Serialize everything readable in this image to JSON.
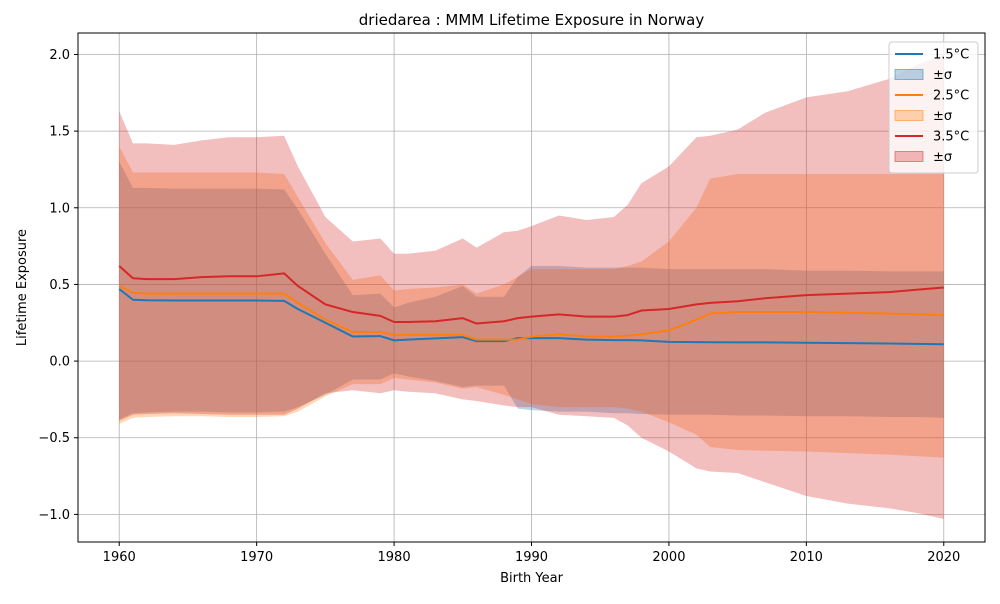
{
  "chart_data": {
    "type": "area",
    "title": "driedarea : MMM Lifetime Exposure in Norway",
    "xlabel": "Birth Year",
    "ylabel": "Lifetime Exposure",
    "xlim": [
      1957.0,
      2023.0
    ],
    "ylim": [
      -1.18,
      2.14
    ],
    "xticks": [
      1960,
      1970,
      1980,
      1990,
      2000,
      2010,
      2020
    ],
    "yticks": [
      -1.0,
      -0.5,
      0.0,
      0.5,
      1.0,
      1.5,
      2.0
    ],
    "xtick_labels": [
      "1960",
      "1970",
      "1980",
      "1990",
      "2000",
      "2010",
      "2020"
    ],
    "ytick_labels": [
      "−1.0",
      "−0.5",
      "0.0",
      "0.5",
      "1.0",
      "1.5",
      "2.0"
    ],
    "grid": true,
    "legend_position": "top-right",
    "x": [
      1960,
      1961,
      1962,
      1964,
      1966,
      1968,
      1970,
      1972,
      1973,
      1975,
      1977,
      1979,
      1980,
      1981,
      1983,
      1985,
      1986,
      1988,
      1989,
      1990,
      1992,
      1994,
      1996,
      1997,
      1998,
      2000,
      2002,
      2003,
      2005,
      2007,
      2010,
      2013,
      2016,
      2018,
      2020
    ],
    "series": [
      {
        "name": "1.5°C",
        "band_label": "±σ",
        "color": "#1f77b4",
        "band_color": "#1f77b4",
        "mean": [
          0.47,
          0.4,
          0.397,
          0.395,
          0.395,
          0.395,
          0.395,
          0.393,
          0.34,
          0.25,
          0.16,
          0.163,
          0.135,
          0.14,
          0.148,
          0.156,
          0.13,
          0.13,
          0.15,
          0.15,
          0.15,
          0.14,
          0.137,
          0.137,
          0.135,
          0.125,
          0.124,
          0.123,
          0.122,
          0.122,
          0.12,
          0.117,
          0.115,
          0.112,
          0.11
        ],
        "upper": [
          1.3,
          1.13,
          1.13,
          1.125,
          1.125,
          1.125,
          1.125,
          1.12,
          0.99,
          0.7,
          0.43,
          0.44,
          0.35,
          0.38,
          0.42,
          0.49,
          0.42,
          0.42,
          0.55,
          0.62,
          0.62,
          0.61,
          0.61,
          0.61,
          0.61,
          0.6,
          0.6,
          0.6,
          0.6,
          0.6,
          0.59,
          0.59,
          0.585,
          0.585,
          0.585
        ],
        "lower": [
          -0.38,
          -0.34,
          -0.335,
          -0.33,
          -0.33,
          -0.335,
          -0.335,
          -0.33,
          -0.3,
          -0.22,
          -0.12,
          -0.12,
          -0.08,
          -0.1,
          -0.13,
          -0.17,
          -0.16,
          -0.16,
          -0.31,
          -0.32,
          -0.33,
          -0.33,
          -0.34,
          -0.34,
          -0.345,
          -0.35,
          -0.35,
          -0.35,
          -0.355,
          -0.355,
          -0.36,
          -0.36,
          -0.365,
          -0.365,
          -0.37
        ]
      },
      {
        "name": "2.5°C",
        "band_label": "±σ",
        "color": "#ff7f0e",
        "band_color": "#ff7f0e",
        "mean": [
          0.49,
          0.445,
          0.44,
          0.44,
          0.44,
          0.44,
          0.44,
          0.44,
          0.38,
          0.27,
          0.19,
          0.19,
          0.17,
          0.17,
          0.17,
          0.17,
          0.14,
          0.14,
          0.14,
          0.16,
          0.175,
          0.16,
          0.16,
          0.165,
          0.175,
          0.2,
          0.27,
          0.31,
          0.32,
          0.32,
          0.32,
          0.315,
          0.31,
          0.305,
          0.3
        ],
        "upper": [
          1.4,
          1.23,
          1.23,
          1.23,
          1.23,
          1.23,
          1.23,
          1.22,
          1.07,
          0.77,
          0.53,
          0.56,
          0.46,
          0.47,
          0.48,
          0.5,
          0.44,
          0.5,
          0.55,
          0.6,
          0.6,
          0.6,
          0.6,
          0.62,
          0.65,
          0.78,
          1.0,
          1.19,
          1.22,
          1.22,
          1.22,
          1.22,
          1.22,
          1.22,
          1.22
        ],
        "lower": [
          -0.41,
          -0.37,
          -0.365,
          -0.36,
          -0.36,
          -0.365,
          -0.365,
          -0.36,
          -0.33,
          -0.23,
          -0.15,
          -0.15,
          -0.11,
          -0.12,
          -0.14,
          -0.18,
          -0.17,
          -0.22,
          -0.25,
          -0.28,
          -0.3,
          -0.3,
          -0.3,
          -0.31,
          -0.33,
          -0.4,
          -0.48,
          -0.56,
          -0.58,
          -0.585,
          -0.59,
          -0.6,
          -0.61,
          -0.62,
          -0.63
        ]
      },
      {
        "name": "3.5°C",
        "band_label": "±σ",
        "color": "#d62728",
        "band_color": "#d62728",
        "mean": [
          0.62,
          0.54,
          0.535,
          0.535,
          0.548,
          0.553,
          0.553,
          0.572,
          0.49,
          0.37,
          0.32,
          0.295,
          0.255,
          0.255,
          0.26,
          0.28,
          0.245,
          0.26,
          0.28,
          0.29,
          0.305,
          0.29,
          0.29,
          0.3,
          0.33,
          0.34,
          0.37,
          0.38,
          0.39,
          0.41,
          0.43,
          0.44,
          0.45,
          0.465,
          0.48
        ],
        "upper": [
          1.63,
          1.42,
          1.42,
          1.41,
          1.44,
          1.46,
          1.46,
          1.47,
          1.27,
          0.94,
          0.78,
          0.8,
          0.7,
          0.7,
          0.72,
          0.8,
          0.74,
          0.84,
          0.85,
          0.88,
          0.95,
          0.92,
          0.94,
          1.02,
          1.16,
          1.27,
          1.46,
          1.47,
          1.51,
          1.62,
          1.72,
          1.76,
          1.84,
          1.93,
          2.0
        ],
        "lower": [
          -0.39,
          -0.35,
          -0.345,
          -0.34,
          -0.345,
          -0.35,
          -0.35,
          -0.35,
          -0.31,
          -0.21,
          -0.19,
          -0.21,
          -0.19,
          -0.2,
          -0.21,
          -0.25,
          -0.26,
          -0.29,
          -0.3,
          -0.3,
          -0.35,
          -0.36,
          -0.37,
          -0.42,
          -0.5,
          -0.59,
          -0.7,
          -0.72,
          -0.73,
          -0.79,
          -0.88,
          -0.93,
          -0.96,
          -0.99,
          -1.03
        ]
      }
    ]
  }
}
